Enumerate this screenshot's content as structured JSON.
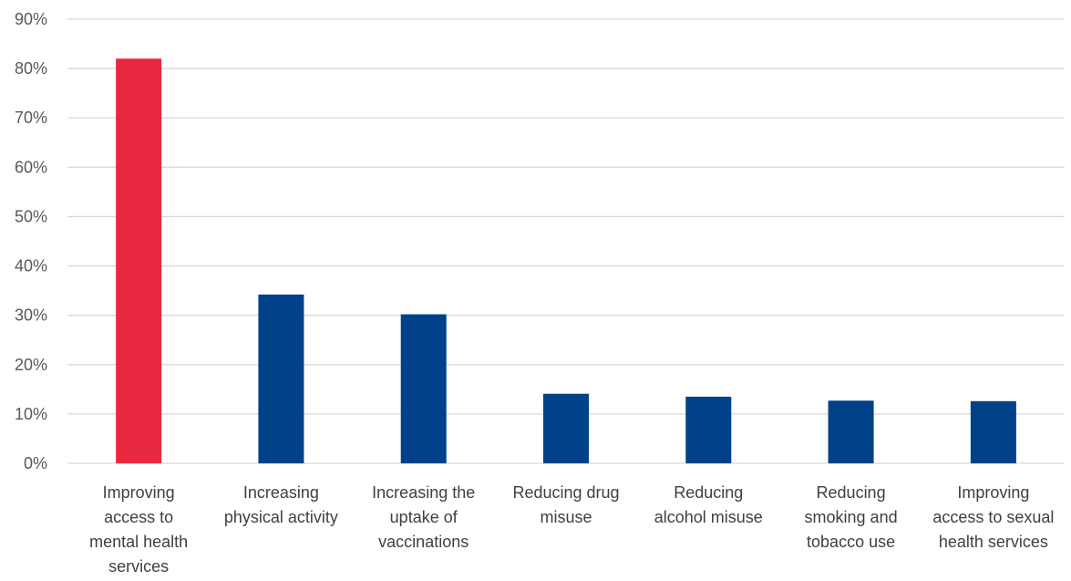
{
  "chart_data": {
    "type": "bar",
    "title": "",
    "xlabel": "",
    "ylabel": "",
    "ylim": [
      0,
      0.9
    ],
    "yticks": [
      0,
      0.1,
      0.2,
      0.3,
      0.4,
      0.5,
      0.6,
      0.7,
      0.8,
      0.9
    ],
    "ytick_labels": [
      "0%",
      "10%",
      "20%",
      "30%",
      "40%",
      "50%",
      "60%",
      "70%",
      "80%",
      "90%"
    ],
    "grid": true,
    "legend": "none",
    "categories": [
      [
        "Improving",
        "access to",
        "mental health",
        "services"
      ],
      [
        "Increasing",
        "physical activity"
      ],
      [
        "Increasing the",
        "uptake of",
        "vaccinations"
      ],
      [
        "Reducing drug",
        "misuse"
      ],
      [
        "Reducing",
        "alcohol misuse"
      ],
      [
        "Reducing",
        "smoking and",
        "tobacco use"
      ],
      [
        "Improving",
        "access to sexual",
        "health services"
      ]
    ],
    "values": [
      0.82,
      0.342,
      0.302,
      0.141,
      0.135,
      0.127,
      0.126
    ],
    "bar_colors": [
      "#e8283e",
      "#00418a",
      "#00418a",
      "#00418a",
      "#00418a",
      "#00418a",
      "#00418a"
    ]
  }
}
